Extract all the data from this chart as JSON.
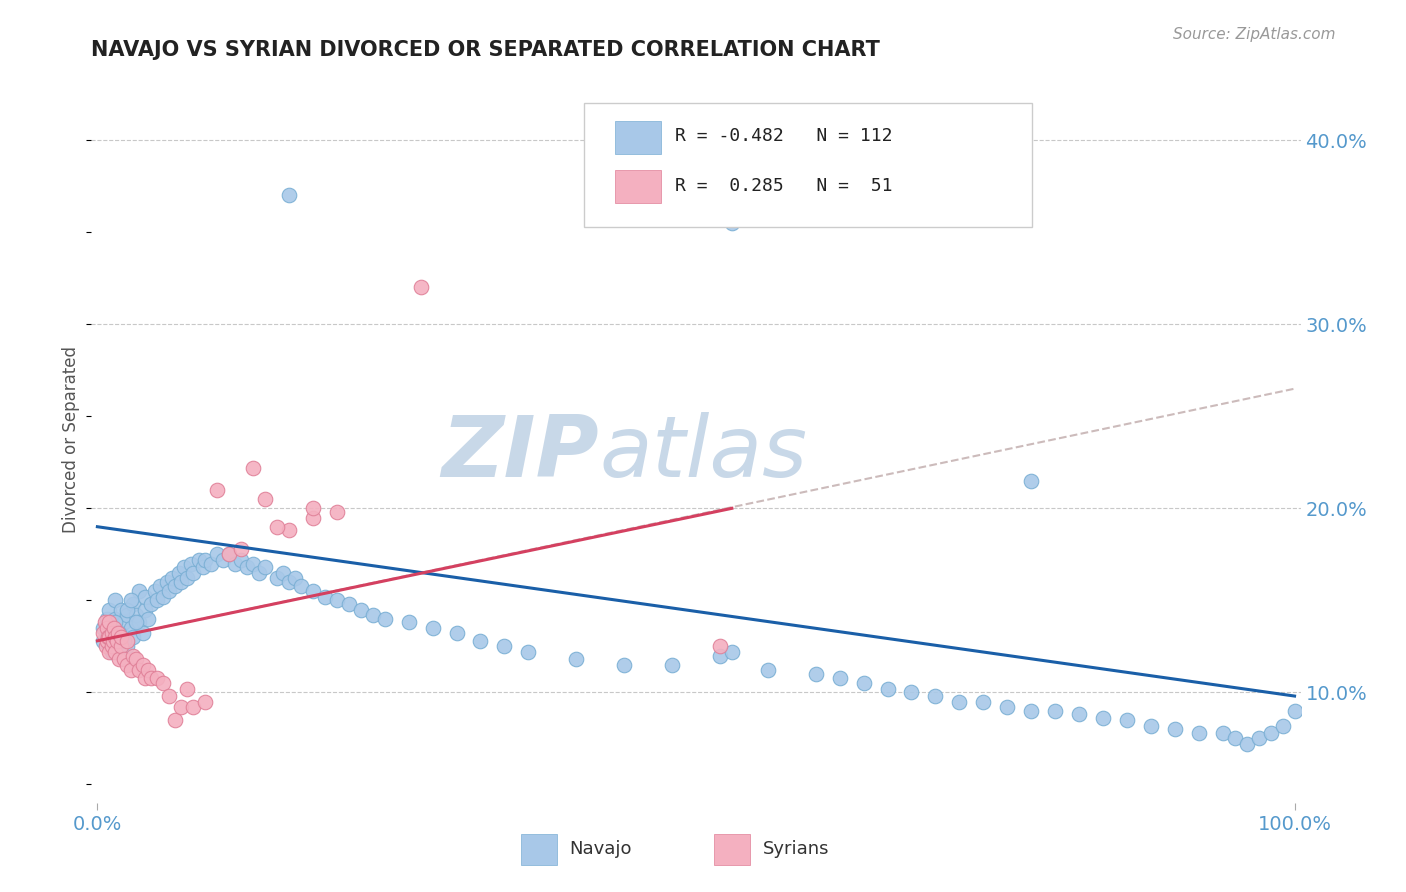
{
  "title": "NAVAJO VS SYRIAN DIVORCED OR SEPARATED CORRELATION CHART",
  "source_text": "Source: ZipAtlas.com",
  "ylabel": "Divorced or Separated",
  "blue_scatter_color": "#a8c8e8",
  "blue_scatter_edge": "#7aafd4",
  "pink_scatter_color": "#f4b0c0",
  "pink_scatter_edge": "#e08098",
  "blue_line_color": "#1a5fa8",
  "pink_line_color": "#d44060",
  "dashed_line_color": "#ccbbbb",
  "watermark_color": "#c8d8e8",
  "tick_color": "#5599cc",
  "background_color": "#ffffff",
  "navajo_x": [
    0.005,
    0.008,
    0.01,
    0.01,
    0.012,
    0.015,
    0.015,
    0.015,
    0.018,
    0.02,
    0.02,
    0.022,
    0.025,
    0.025,
    0.028,
    0.03,
    0.03,
    0.032,
    0.035,
    0.035,
    0.038,
    0.04,
    0.04,
    0.042,
    0.045,
    0.048,
    0.05,
    0.052,
    0.055,
    0.058,
    0.06,
    0.062,
    0.065,
    0.068,
    0.07,
    0.072,
    0.075,
    0.078,
    0.08,
    0.085,
    0.088,
    0.09,
    0.095,
    0.1,
    0.105,
    0.11,
    0.115,
    0.12,
    0.125,
    0.13,
    0.135,
    0.14,
    0.15,
    0.155,
    0.16,
    0.165,
    0.17,
    0.18,
    0.19,
    0.2,
    0.21,
    0.22,
    0.23,
    0.24,
    0.26,
    0.28,
    0.3,
    0.32,
    0.34,
    0.36,
    0.4,
    0.44,
    0.48,
    0.52,
    0.53,
    0.56,
    0.6,
    0.62,
    0.64,
    0.66,
    0.68,
    0.7,
    0.72,
    0.74,
    0.76,
    0.78,
    0.8,
    0.82,
    0.84,
    0.86,
    0.88,
    0.9,
    0.92,
    0.94,
    0.95,
    0.96,
    0.97,
    0.98,
    0.99,
    1.0,
    0.16,
    0.53,
    0.78,
    0.005,
    0.008,
    0.012,
    0.015,
    0.018,
    0.022,
    0.025,
    0.028,
    0.032
  ],
  "navajo_y": [
    0.135,
    0.14,
    0.125,
    0.145,
    0.13,
    0.135,
    0.14,
    0.15,
    0.128,
    0.132,
    0.145,
    0.138,
    0.125,
    0.142,
    0.135,
    0.13,
    0.148,
    0.142,
    0.138,
    0.155,
    0.132,
    0.145,
    0.152,
    0.14,
    0.148,
    0.155,
    0.15,
    0.158,
    0.152,
    0.16,
    0.155,
    0.162,
    0.158,
    0.165,
    0.16,
    0.168,
    0.162,
    0.17,
    0.165,
    0.172,
    0.168,
    0.172,
    0.17,
    0.175,
    0.172,
    0.175,
    0.17,
    0.172,
    0.168,
    0.17,
    0.165,
    0.168,
    0.162,
    0.165,
    0.16,
    0.162,
    0.158,
    0.155,
    0.152,
    0.15,
    0.148,
    0.145,
    0.142,
    0.14,
    0.138,
    0.135,
    0.132,
    0.128,
    0.125,
    0.122,
    0.118,
    0.115,
    0.115,
    0.12,
    0.122,
    0.112,
    0.11,
    0.108,
    0.105,
    0.102,
    0.1,
    0.098,
    0.095,
    0.095,
    0.092,
    0.09,
    0.09,
    0.088,
    0.086,
    0.085,
    0.082,
    0.08,
    0.078,
    0.078,
    0.075,
    0.072,
    0.075,
    0.078,
    0.082,
    0.09,
    0.37,
    0.355,
    0.215,
    0.128,
    0.13,
    0.122,
    0.138,
    0.132,
    0.128,
    0.145,
    0.15,
    0.138
  ],
  "syrian_x": [
    0.005,
    0.006,
    0.007,
    0.008,
    0.008,
    0.009,
    0.01,
    0.01,
    0.01,
    0.012,
    0.012,
    0.013,
    0.014,
    0.015,
    0.015,
    0.016,
    0.017,
    0.018,
    0.02,
    0.02,
    0.022,
    0.025,
    0.025,
    0.028,
    0.03,
    0.032,
    0.035,
    0.038,
    0.04,
    0.042,
    0.045,
    0.05,
    0.055,
    0.06,
    0.065,
    0.07,
    0.075,
    0.08,
    0.09,
    0.1,
    0.11,
    0.12,
    0.14,
    0.16,
    0.18,
    0.2,
    0.27,
    0.13,
    0.15,
    0.18,
    0.52
  ],
  "syrian_y": [
    0.132,
    0.138,
    0.125,
    0.128,
    0.135,
    0.13,
    0.122,
    0.13,
    0.138,
    0.125,
    0.132,
    0.128,
    0.135,
    0.122,
    0.13,
    0.128,
    0.132,
    0.118,
    0.125,
    0.13,
    0.118,
    0.115,
    0.128,
    0.112,
    0.12,
    0.118,
    0.112,
    0.115,
    0.108,
    0.112,
    0.108,
    0.108,
    0.105,
    0.098,
    0.085,
    0.092,
    0.102,
    0.092,
    0.095,
    0.21,
    0.175,
    0.178,
    0.205,
    0.188,
    0.195,
    0.198,
    0.32,
    0.222,
    0.19,
    0.2,
    0.125
  ],
  "blue_line_x0": 0.0,
  "blue_line_y0": 0.19,
  "blue_line_x1": 1.0,
  "blue_line_y1": 0.098,
  "pink_line_x0": 0.0,
  "pink_line_y0": 0.128,
  "pink_line_x1": 0.53,
  "pink_line_y1": 0.2,
  "dashed_line_x0": 0.0,
  "dashed_line_y0": 0.128,
  "dashed_line_x1": 1.0,
  "dashed_line_y1": 0.265,
  "xlim": [
    -0.005,
    1.005
  ],
  "ylim": [
    0.04,
    0.435
  ],
  "yticks": [
    0.1,
    0.2,
    0.3,
    0.4
  ],
  "ytick_labels": [
    "10.0%",
    "20.0%",
    "30.0%",
    "40.0%"
  ],
  "xticks": [
    0.0,
    1.0
  ],
  "xtick_labels": [
    "0.0%",
    "100.0%"
  ]
}
